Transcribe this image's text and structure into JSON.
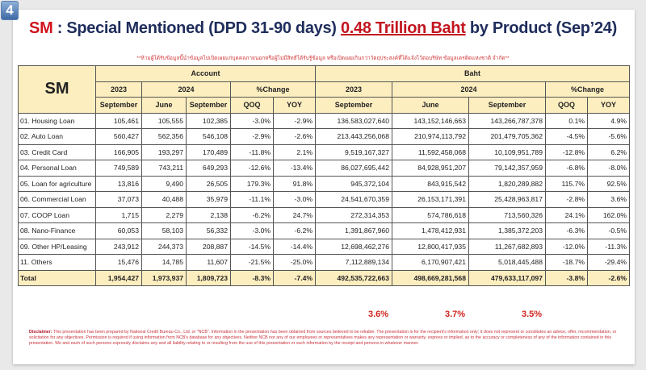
{
  "badge": "4",
  "title": {
    "sm": "SM",
    "rest": " : Special Mentioned (DPD 31-90 days) ",
    "highlight": "0.48 Trillion Baht",
    "tail": " by Product (Sep’24)"
  },
  "warning": "**ห้ามผู้ได้รับข้อมูลนี้นำข้อมูลไปเปิดเผยแก่บุคคลภายนอกหรือผู้ไม่มีสิทธิได้รับรู้ข้อมูล หรือเปิดเผยเกินกว่าวัตถุประสงค์ที่ได้แจ้งไว้ต่อบริษัท ข้อมูลเครดิตแห่งชาติ จำกัด**",
  "table": {
    "corner": "SM",
    "groups": [
      "Account",
      "Baht"
    ],
    "years": [
      "2023",
      "2024",
      "%Change"
    ],
    "months": [
      "September",
      "June",
      "September",
      "QOQ",
      "YOY"
    ],
    "rows": [
      [
        "01. Housing Loan",
        "105,461",
        "105,555",
        "102,385",
        "-3.0%",
        "-2.9%",
        "136,583,027,640",
        "143,152,146,663",
        "143,266,787,378",
        "0.1%",
        "4.9%"
      ],
      [
        "02. Auto Loan",
        "560,427",
        "562,356",
        "546,108",
        "-2.9%",
        "-2.6%",
        "213,443,256,068",
        "210,974,113,792",
        "201,479,705,362",
        "-4.5%",
        "-5.6%"
      ],
      [
        "03. Credit Card",
        "166,905",
        "193,297",
        "170,489",
        "-11.8%",
        "2.1%",
        "9,519,167,327",
        "11,592,458,068",
        "10,109,951,789",
        "-12.8%",
        "6.2%"
      ],
      [
        "04. Personal Loan",
        "749,589",
        "743,211",
        "649,293",
        "-12.6%",
        "-13.4%",
        "86,027,695,442",
        "84,928,951,207",
        "79,142,357,959",
        "-6.8%",
        "-8.0%"
      ],
      [
        "05. Loan for agriculture",
        "13,816",
        "9,490",
        "26,505",
        "179.3%",
        "91.8%",
        "945,372,104",
        "843,915,542",
        "1,820,289,882",
        "115.7%",
        "92.5%"
      ],
      [
        "06. Commercial Loan",
        "37,073",
        "40,488",
        "35,979",
        "-11.1%",
        "-3.0%",
        "24,541,670,359",
        "26,153,171,391",
        "25,428,963,817",
        "-2.8%",
        "3.6%"
      ],
      [
        "07. COOP Loan",
        "1,715",
        "2,279",
        "2,138",
        "-6.2%",
        "24.7%",
        "272,314,353",
        "574,786,618",
        "713,560,326",
        "24.1%",
        "162.0%"
      ],
      [
        "08. Nano-Finance",
        "60,053",
        "58,103",
        "56,332",
        "-3.0%",
        "-6.2%",
        "1,391,867,960",
        "1,478,412,931",
        "1,385,372,203",
        "-6.3%",
        "-0.5%"
      ],
      [
        "09. Other HP/Leasing",
        "243,912",
        "244,373",
        "208,887",
        "-14.5%",
        "-14.4%",
        "12,698,462,276",
        "12,800,417,935",
        "11,267,682,893",
        "-12.0%",
        "-11.3%"
      ],
      [
        "11. Others",
        "15,476",
        "14,785",
        "11,607",
        "-21.5%",
        "-25.0%",
        "7,112,889,134",
        "6,170,907,421",
        "5,018,445,488",
        "-18.7%",
        "-29.4%"
      ]
    ],
    "total": [
      "Total",
      "1,954,427",
      "1,973,937",
      "1,809,723",
      "-8.3%",
      "-7.4%",
      "492,535,722,663",
      "498,669,281,568",
      "479,633,117,097",
      "-3.8%",
      "-2.6%"
    ]
  },
  "shares": [
    "3.6%",
    "3.7%",
    "3.5%"
  ],
  "disclaimer": {
    "label": "Disclaimer:",
    "text": " This presentation has been prepared by National Credit Bureau Co., Ltd. or \"NCB\". Information in the presentation has been obtained from sources believed to be reliable. The presentation is for the recipient's information only; it does not represent or constitutes an advice, offer, recommendation, or solicitation for any objectives. Permission is required if using information from NCB's database for any objectives. Neither NCB nor any of our employees or representatives makes any representation or warranty, express or implied, as to the accuracy or completeness of any of the information contained in this presentation. We and each of such persons expressly disclaims any and all liability relating to or resulting from the use of this presentation or such information by the receipt and persons in whatever manner."
  },
  "colors": {
    "header_fill": "#fdeec0",
    "title": "#1f2d5c",
    "accent_red": "#d0141e"
  }
}
